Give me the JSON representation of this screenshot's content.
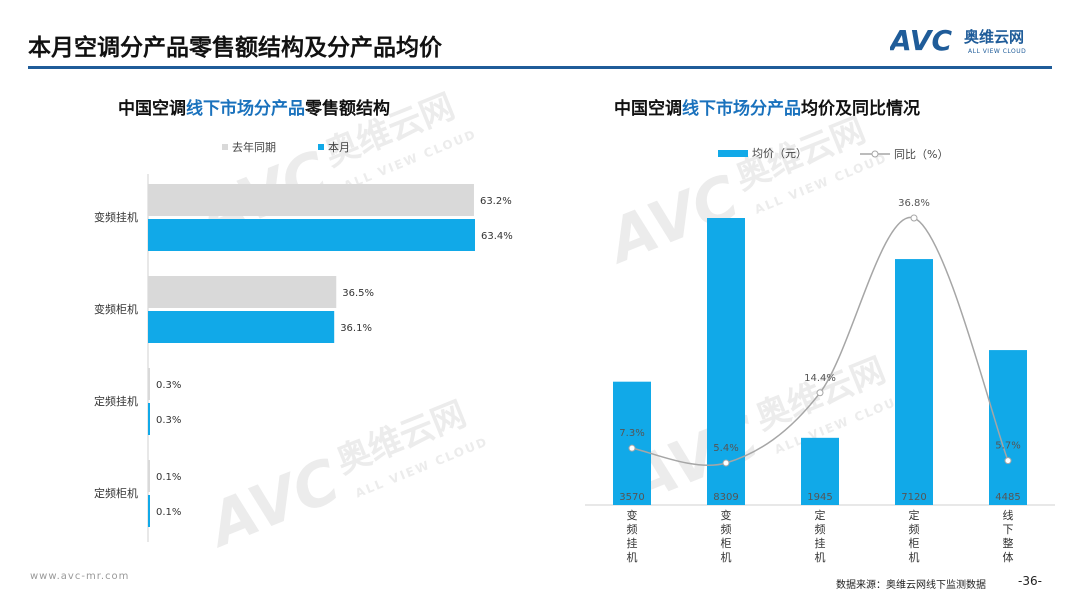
{
  "header": {
    "title": "本月空调分产品零售额结构及分产品均价",
    "logo_text": "AVC",
    "logo_cn": "奥维云网",
    "logo_en": "ALL VIEW CLOUD"
  },
  "colors": {
    "accent": "#1f5c99",
    "current": "#11a9e8",
    "previous": "#d9d9d9",
    "line": "#a6a6a6"
  },
  "watermark": {
    "cn": "奥维云网",
    "en": "ALL VIEW CLOUD"
  },
  "left_chart": {
    "title_a": "中国空调",
    "title_b": "线下市场分产品",
    "title_c": "零售额结构"
  },
  "right_chart": {
    "title_a": "中国空调",
    "title_b": "线下市场分产品",
    "title_c": "均价及同比情况"
  },
  "chart_data": [
    {
      "type": "bar",
      "orientation": "horizontal",
      "categories": [
        "变频挂机",
        "变频柜机",
        "定频挂机",
        "定频柜机"
      ],
      "series": [
        {
          "name": "去年同期",
          "values": [
            63.2,
            36.5,
            0.3,
            0.1
          ],
          "labels": [
            "63.2%",
            "36.5%",
            "0.3%",
            "0.1%"
          ]
        },
        {
          "name": "本月",
          "values": [
            63.4,
            36.1,
            0.3,
            0.1
          ],
          "labels": [
            "63.4%",
            "36.1%",
            "0.3%",
            "0.1%"
          ]
        }
      ],
      "legend": "top"
    },
    {
      "type": "bar",
      "categories": [
        "变频挂机",
        "变频柜机",
        "定频挂机",
        "定频柜机",
        "线下整体"
      ],
      "series": [
        {
          "name": "均价（元）",
          "type": "bar",
          "values": [
            3570,
            8309,
            1945,
            7120,
            4485
          ]
        },
        {
          "name": "同比（%）",
          "type": "line",
          "values": [
            7.3,
            5.4,
            14.4,
            36.8,
            5.7
          ],
          "labels": [
            "7.3%",
            "5.4%",
            "14.4%",
            "36.8%",
            "5.7%"
          ]
        }
      ],
      "legend": "top"
    }
  ],
  "footer": {
    "url": "www.avc-mr.com",
    "source": "数据来源：奥维云网线下监测数据",
    "page": "-36-"
  }
}
